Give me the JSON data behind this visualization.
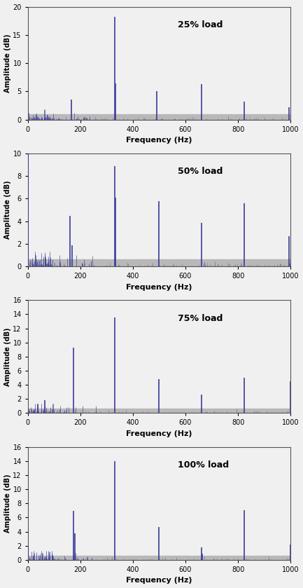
{
  "plots": [
    {
      "label": "25% load",
      "ylim": [
        0,
        20
      ],
      "yticks": [
        0,
        5,
        10,
        15,
        20
      ],
      "gray_band_top": 1.0,
      "spikes": [
        {
          "freq": 330,
          "amp": 18.2
        },
        {
          "freq": 333,
          "amp": 6.4
        },
        {
          "freq": 165,
          "amp": 3.5
        },
        {
          "freq": 490,
          "amp": 5.0
        },
        {
          "freq": 660,
          "amp": 6.3
        },
        {
          "freq": 825,
          "amp": 3.2
        },
        {
          "freq": 995,
          "amp": 2.2
        }
      ],
      "noise_floor": 0.6,
      "noise_seed": 10,
      "dc_spike": 0.0,
      "dc_amp": 0.0
    },
    {
      "label": "50% load",
      "ylim": [
        0,
        10
      ],
      "yticks": [
        0,
        2,
        4,
        6,
        8,
        10
      ],
      "gray_band_top": 0.6,
      "spikes": [
        {
          "freq": 330,
          "amp": 8.9
        },
        {
          "freq": 333,
          "amp": 6.1
        },
        {
          "freq": 160,
          "amp": 4.5
        },
        {
          "freq": 500,
          "amp": 5.8
        },
        {
          "freq": 660,
          "amp": 3.85
        },
        {
          "freq": 825,
          "amp": 5.6
        },
        {
          "freq": 995,
          "amp": 2.65
        },
        {
          "freq": 168,
          "amp": 1.85
        }
      ],
      "noise_floor": 0.45,
      "noise_seed": 20,
      "dc_spike": 2,
      "dc_amp": 10.3
    },
    {
      "label": "75% load",
      "ylim": [
        0,
        16
      ],
      "yticks": [
        0,
        2,
        4,
        6,
        8,
        10,
        12,
        14,
        16
      ],
      "gray_band_top": 0.6,
      "spikes": [
        {
          "freq": 330,
          "amp": 13.6
        },
        {
          "freq": 175,
          "amp": 9.3
        },
        {
          "freq": 500,
          "amp": 4.85
        },
        {
          "freq": 660,
          "amp": 2.65
        },
        {
          "freq": 825,
          "amp": 5.0
        },
        {
          "freq": 1000,
          "amp": 4.5
        },
        {
          "freq": 65,
          "amp": 1.8
        }
      ],
      "noise_floor": 0.45,
      "noise_seed": 30,
      "dc_spike": 0.0,
      "dc_amp": 0.0
    },
    {
      "label": "100% load",
      "ylim": [
        0,
        16
      ],
      "yticks": [
        0,
        2,
        4,
        6,
        8,
        10,
        12,
        14,
        16
      ],
      "gray_band_top": 0.6,
      "spikes": [
        {
          "freq": 330,
          "amp": 14.0
        },
        {
          "freq": 175,
          "amp": 6.9
        },
        {
          "freq": 178,
          "amp": 3.8
        },
        {
          "freq": 500,
          "amp": 4.7
        },
        {
          "freq": 660,
          "amp": 1.8
        },
        {
          "freq": 663,
          "amp": 0.9
        },
        {
          "freq": 825,
          "amp": 7.0
        },
        {
          "freq": 1000,
          "amp": 2.2
        }
      ],
      "noise_floor": 0.45,
      "noise_seed": 40,
      "dc_spike": 2,
      "dc_amp": 1.8
    }
  ],
  "xlim": [
    0,
    1000
  ],
  "xticks": [
    0,
    200,
    400,
    600,
    800,
    1000
  ],
  "xlabel": "Frequency (Hz)",
  "ylabel": "Amplitude (dB)",
  "line_color": "#3a3a9a",
  "gray_band_color": "#b8b8b8",
  "fig_bg": "#f0f0f0",
  "axes_bg": "#f0f0f0"
}
